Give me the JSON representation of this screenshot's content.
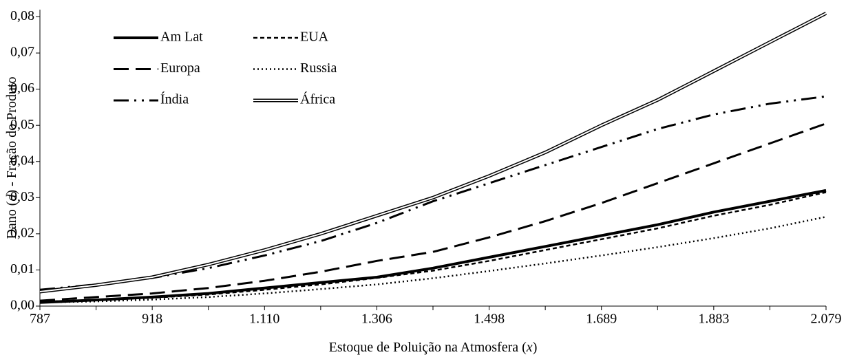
{
  "chart_data": {
    "type": "line",
    "x_label": [
      "Estoque de Poluição na Atmosfera (",
      "x",
      ")"
    ],
    "y_label": [
      "Dano (",
      "d",
      ") - Fração do Produto"
    ],
    "categories": [
      "787",
      null,
      "918",
      null,
      "1.110",
      null,
      "1.306",
      null,
      "1.498",
      null,
      "1.689",
      null,
      "1.883",
      null,
      "2.079"
    ],
    "ylim": [
      0,
      0.082
    ],
    "yticks": [
      {
        "value": 0,
        "label": "0,00"
      },
      {
        "value": 0.01,
        "label": "0,01"
      },
      {
        "value": 0.02,
        "label": "0,02"
      },
      {
        "value": 0.03,
        "label": "0,03"
      },
      {
        "value": 0.04,
        "label": "0,04"
      },
      {
        "value": 0.05,
        "label": "0,05"
      },
      {
        "value": 0.06,
        "label": "0,06"
      },
      {
        "value": 0.07,
        "label": "0,07"
      },
      {
        "value": 0.08,
        "label": "0,08"
      }
    ],
    "legend": "top-left",
    "series": [
      {
        "name": "Am Lat",
        "color": "#000000",
        "style": "solid",
        "values": [
          0.001,
          0.0017,
          0.0025,
          0.0035,
          0.005,
          0.0065,
          0.008,
          0.0105,
          0.0135,
          0.0165,
          0.0195,
          0.0225,
          0.026,
          0.029,
          0.032
        ]
      },
      {
        "name": "EUA",
        "color": "#000000",
        "style": "short-dash",
        "values": [
          0.0012,
          0.0017,
          0.0023,
          0.0032,
          0.0045,
          0.006,
          0.0078,
          0.0098,
          0.0125,
          0.0155,
          0.0185,
          0.0215,
          0.025,
          0.028,
          0.0315
        ]
      },
      {
        "name": "Europa",
        "color": "#000000",
        "style": "long-dash",
        "values": [
          0.0015,
          0.0025,
          0.0035,
          0.005,
          0.007,
          0.0095,
          0.0125,
          0.015,
          0.019,
          0.0235,
          0.0285,
          0.034,
          0.0395,
          0.045,
          0.0505
        ]
      },
      {
        "name": "Russia",
        "color": "#000000",
        "style": "dot",
        "values": [
          0.001,
          0.0013,
          0.0018,
          0.0025,
          0.0035,
          0.0047,
          0.006,
          0.0077,
          0.0097,
          0.0118,
          0.014,
          0.0163,
          0.0188,
          0.0215,
          0.0247
        ]
      },
      {
        "name": "Índia",
        "color": "#000000",
        "style": "dash-dot-dot",
        "values": [
          0.0045,
          0.006,
          0.0078,
          0.0105,
          0.014,
          0.018,
          0.023,
          0.029,
          0.034,
          0.039,
          0.044,
          0.049,
          0.053,
          0.056,
          0.058
        ]
      },
      {
        "name": "África",
        "color": "#000000",
        "style": "double",
        "values": [
          0.004,
          0.0058,
          0.008,
          0.0115,
          0.0155,
          0.02,
          0.025,
          0.03,
          0.036,
          0.0425,
          0.05,
          0.057,
          0.065,
          0.073,
          0.081
        ]
      }
    ]
  }
}
